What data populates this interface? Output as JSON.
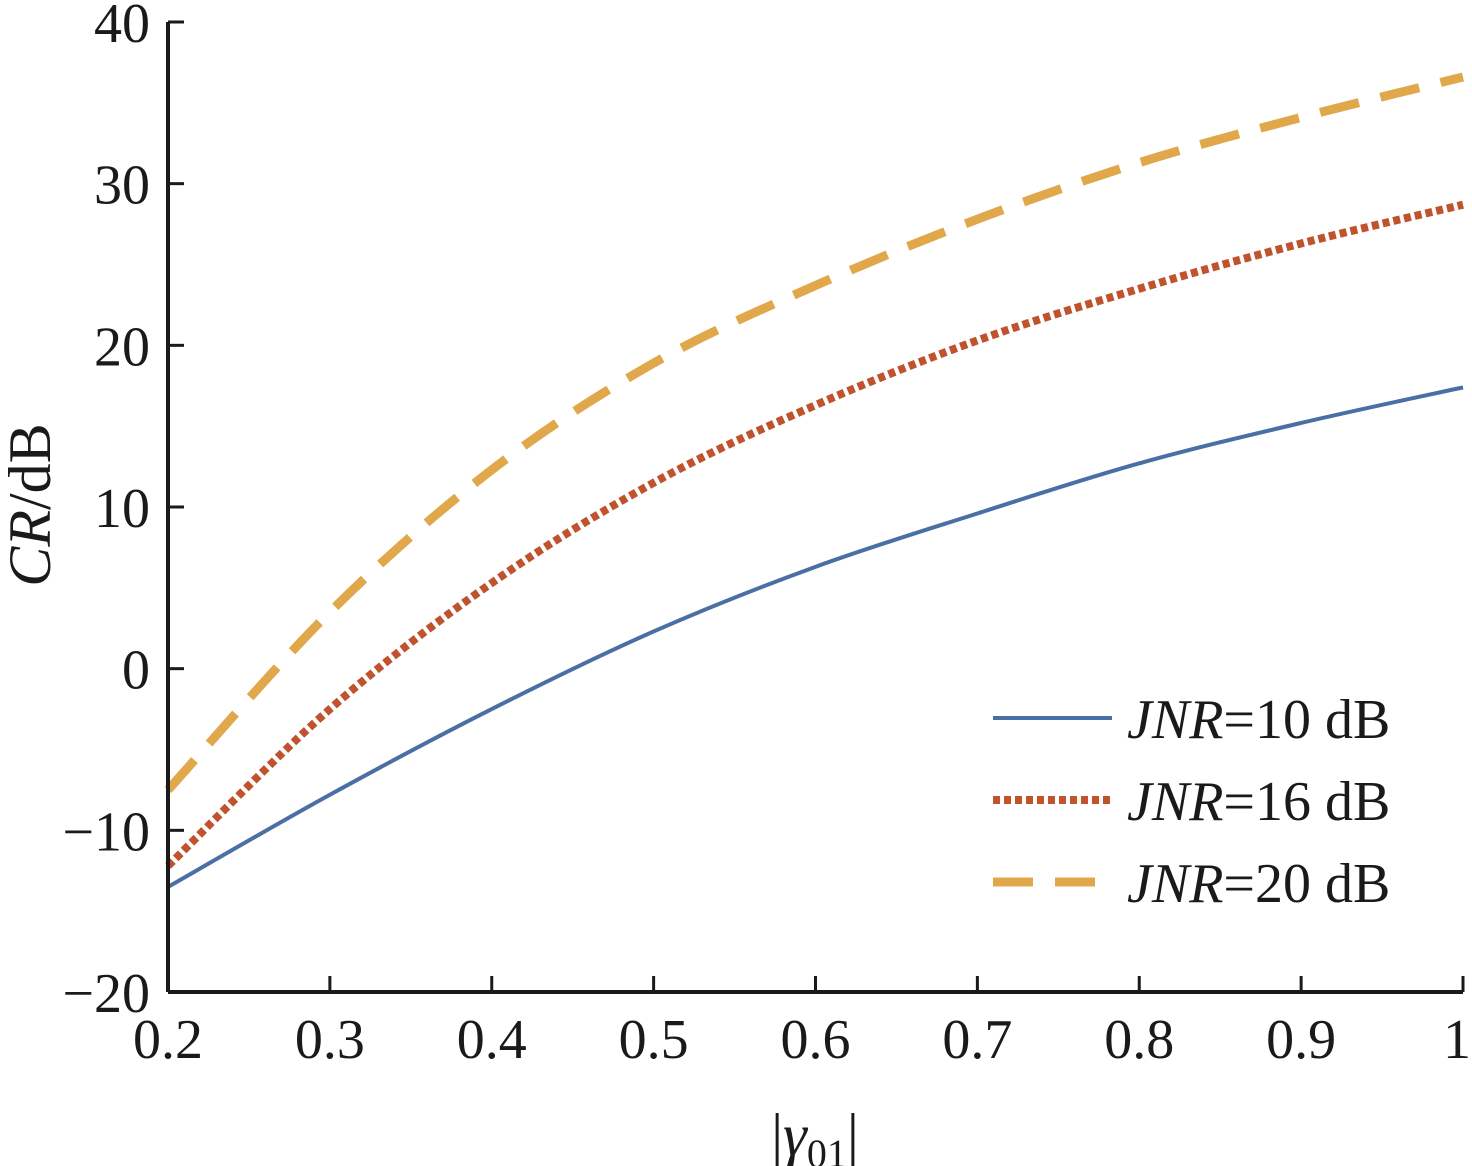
{
  "chart_data": {
    "type": "line",
    "title": "",
    "xlabel": "|γ01|",
    "ylabel": "CR/dB",
    "xlim": [
      0.2,
      1.0
    ],
    "ylim": [
      -20,
      40
    ],
    "x_ticks": [
      0.2,
      0.3,
      0.4,
      0.5,
      0.6,
      0.7,
      0.8,
      0.9,
      1.0
    ],
    "x_tick_labels": [
      "0.2",
      "0.3",
      "0.4",
      "0.5",
      "0.6",
      "0.7",
      "0.8",
      "0.9",
      "1"
    ],
    "y_ticks": [
      -20,
      -10,
      0,
      10,
      20,
      30,
      40
    ],
    "y_tick_labels": [
      "−20",
      "−10",
      "0",
      "10",
      "20",
      "30",
      "40"
    ],
    "grid": false,
    "legend_position": "bottom-right",
    "x": [
      0.2,
      0.3,
      0.4,
      0.5,
      0.6,
      0.7,
      0.8,
      0.9,
      1.0
    ],
    "series": [
      {
        "name": "JNR=10 dB",
        "name_italic": "JNR",
        "name_rest": "=10 dB",
        "style": "solid",
        "color": "#4a6fa5",
        "values": [
          -13.5,
          -7.8,
          -2.5,
          2.3,
          6.3,
          9.6,
          12.7,
          15.2,
          17.4
        ]
      },
      {
        "name": "JNR=16 dB",
        "name_italic": "JNR",
        "name_rest": "=16 dB",
        "style": "dotted",
        "color": "#c0522d",
        "values": [
          -12.2,
          -2.5,
          5.3,
          11.5,
          16.3,
          20.3,
          23.5,
          26.3,
          28.7
        ]
      },
      {
        "name": "JNR=20 dB",
        "name_italic": "JNR",
        "name_rest": "=20 dB",
        "style": "dashed",
        "color": "#e0a84a",
        "values": [
          -7.5,
          3.5,
          12.3,
          18.9,
          23.7,
          27.8,
          31.3,
          34.1,
          36.6
        ]
      }
    ]
  }
}
